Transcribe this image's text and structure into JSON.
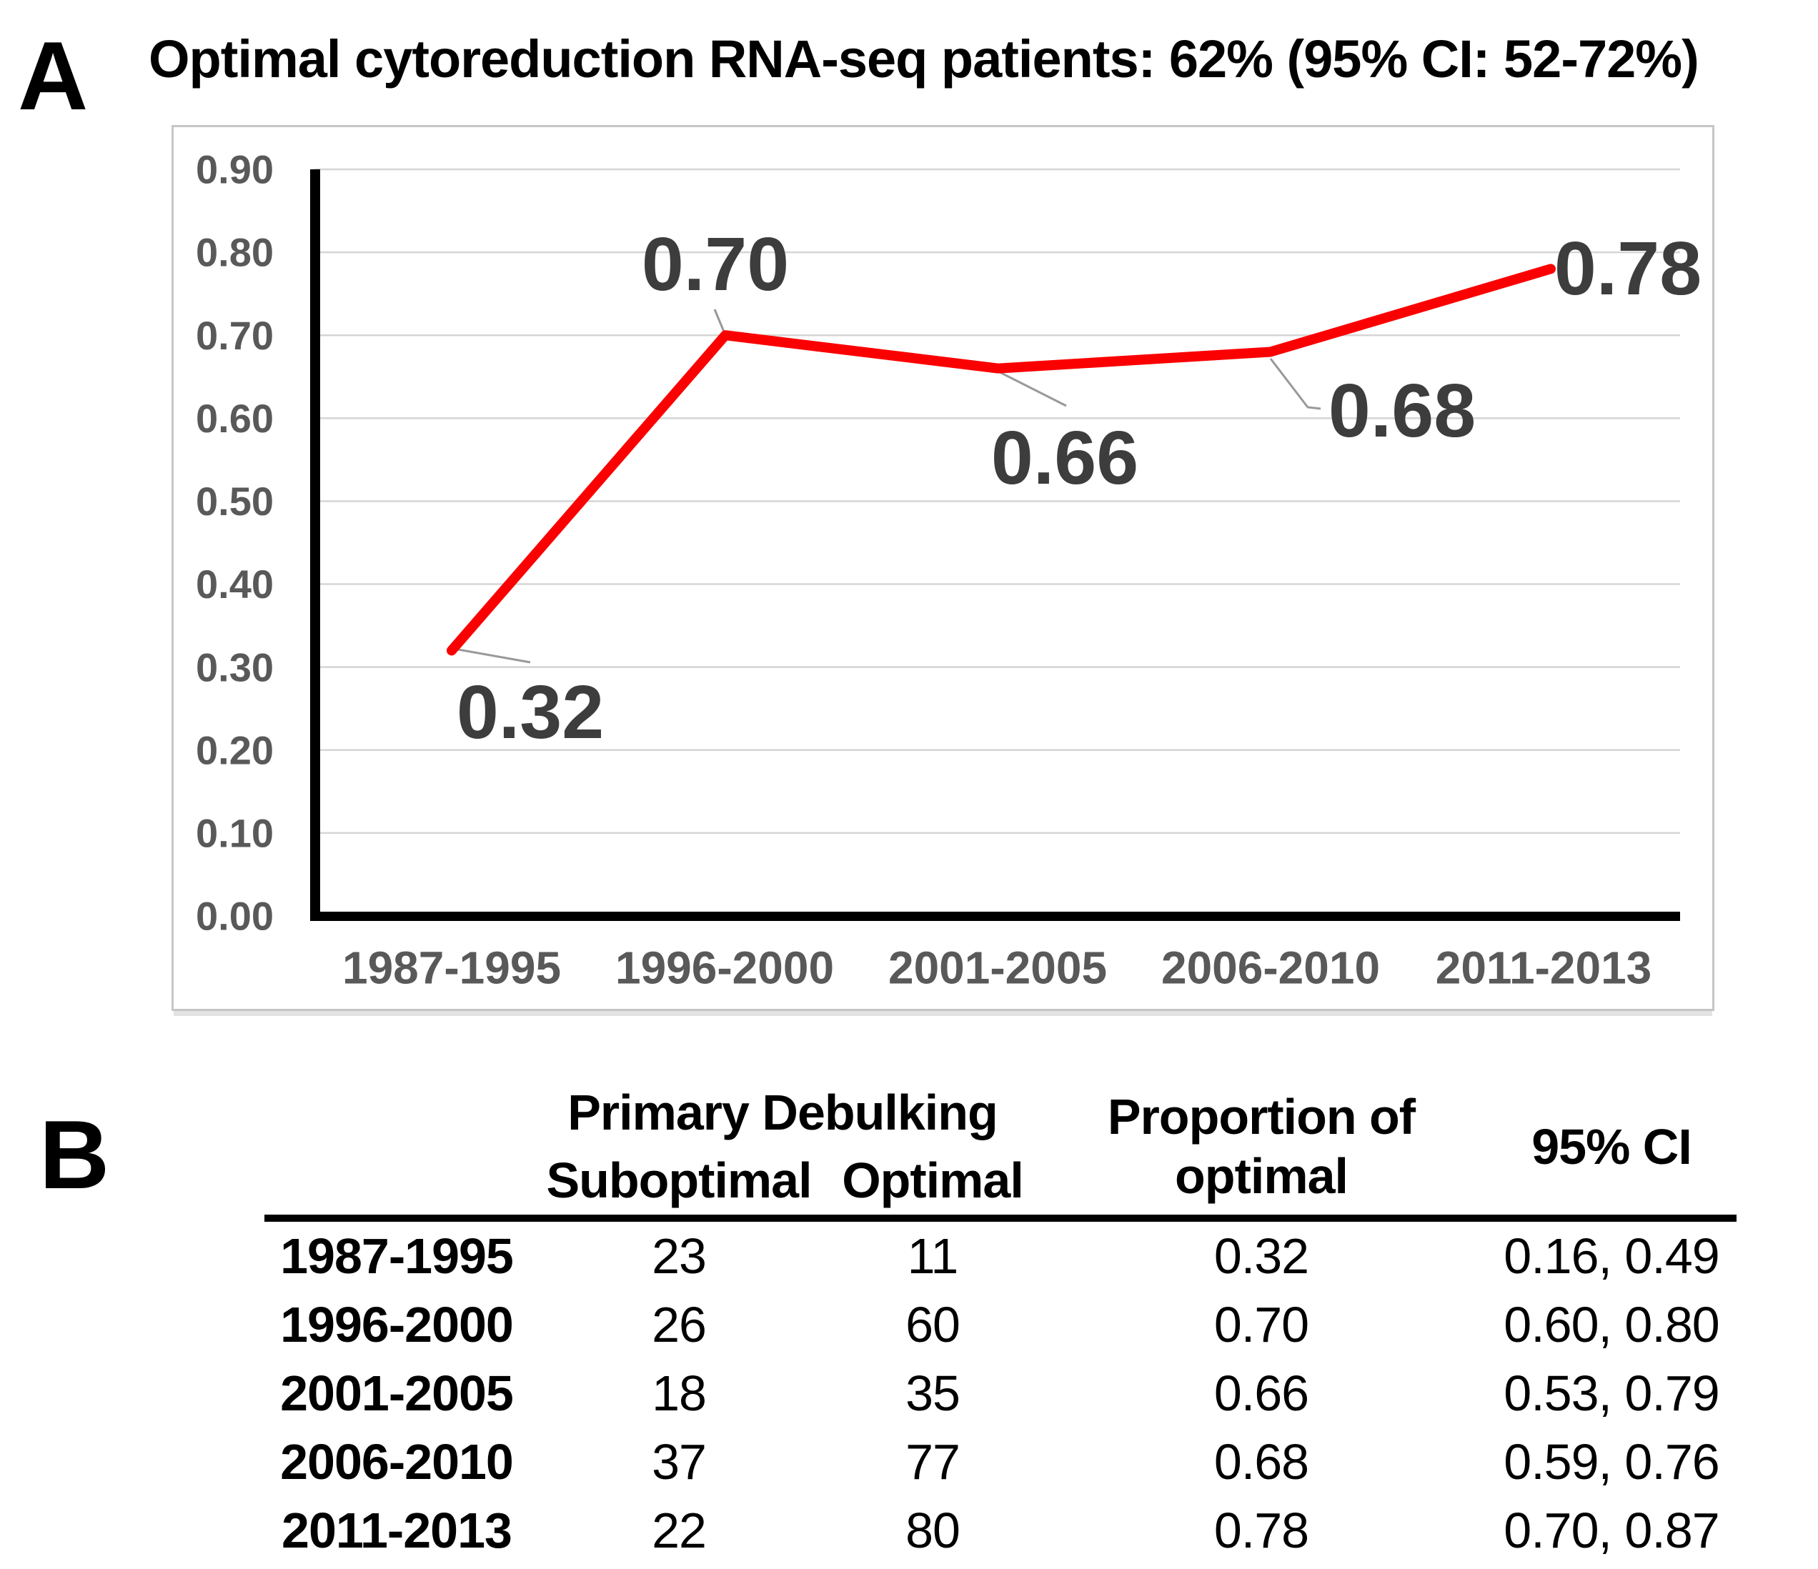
{
  "panel_a": {
    "label": "A"
  },
  "chart_data": {
    "type": "line",
    "title": "Optimal cytoreduction RNA-seq patients: 62% (95% CI: 52-72%)",
    "categories": [
      "1987-1995",
      "1996-2000",
      "2001-2005",
      "2006-2010",
      "2011-2013"
    ],
    "values": [
      0.32,
      0.7,
      0.66,
      0.68,
      0.78
    ],
    "data_labels": [
      "0.32",
      "0.70",
      "0.66",
      "0.68",
      "0.78"
    ],
    "y_tick_labels": [
      "0.00",
      "0.10",
      "0.20",
      "0.30",
      "0.40",
      "0.50",
      "0.60",
      "0.70",
      "0.80",
      "0.90"
    ],
    "ylim": [
      0,
      0.9
    ],
    "grid": "horizontal",
    "legend": "none",
    "colors": {
      "line": "#fb0000",
      "data_label": "#3d3d3d",
      "tick": "#595959",
      "grid": "#d5d5d5",
      "axis": "#000000",
      "leader": "#999999"
    }
  },
  "panel_b": {
    "label": "B",
    "table": {
      "group_header": "Primary Debulking",
      "columns": {
        "suboptimal": "Suboptimal",
        "optimal": "Optimal",
        "proportion": "Proportion of optimal",
        "ci": "95% CI"
      },
      "rows": [
        {
          "period": "1987-1995",
          "suboptimal": "23",
          "optimal": "11",
          "proportion": "0.32",
          "ci": "0.16, 0.49"
        },
        {
          "period": "1996-2000",
          "suboptimal": "26",
          "optimal": "60",
          "proportion": "0.70",
          "ci": "0.60, 0.80"
        },
        {
          "period": "2001-2005",
          "suboptimal": "18",
          "optimal": "35",
          "proportion": "0.66",
          "ci": "0.53, 0.79"
        },
        {
          "period": "2006-2010",
          "suboptimal": "37",
          "optimal": "77",
          "proportion": "0.68",
          "ci": "0.59, 0.76"
        },
        {
          "period": "2011-2013",
          "suboptimal": "22",
          "optimal": "80",
          "proportion": "0.78",
          "ci": "0.70, 0.87"
        }
      ]
    }
  }
}
